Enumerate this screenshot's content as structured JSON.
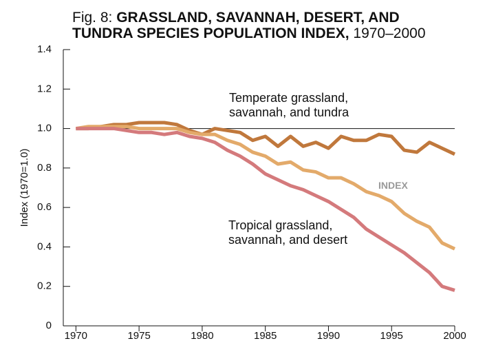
{
  "chart_data": {
    "type": "line",
    "title": {
      "prefix": "Fig. 8:",
      "bold": [
        "GRASSLAND, SAVANNAH, DESERT, AND",
        "TUNDRA SPECIES POPULATION INDEX,"
      ],
      "suffix": "1970–2000"
    },
    "ylabel": "Index (1970=1.0)",
    "x": [
      1970,
      1971,
      1972,
      1973,
      1974,
      1975,
      1976,
      1977,
      1978,
      1979,
      1980,
      1981,
      1982,
      1983,
      1984,
      1985,
      1986,
      1987,
      1988,
      1989,
      1990,
      1991,
      1992,
      1993,
      1994,
      1995,
      1996,
      1997,
      1998,
      1999,
      2000
    ],
    "series": [
      {
        "name": "Temperate grassland, savannah, and tundra",
        "color": "#c0783c",
        "values": [
          1.0,
          1.0,
          1.01,
          1.02,
          1.02,
          1.03,
          1.03,
          1.03,
          1.02,
          0.99,
          0.97,
          1.0,
          0.99,
          0.98,
          0.94,
          0.96,
          0.91,
          0.96,
          0.91,
          0.93,
          0.9,
          0.96,
          0.94,
          0.94,
          0.97,
          0.96,
          0.89,
          0.88,
          0.93,
          0.9,
          0.87
        ]
      },
      {
        "name": "INDEX",
        "color": "#e3aa6a",
        "values": [
          1.0,
          1.01,
          1.01,
          1.01,
          1.01,
          1.0,
          1.0,
          1.0,
          1.0,
          0.98,
          0.97,
          0.97,
          0.94,
          0.92,
          0.88,
          0.86,
          0.82,
          0.83,
          0.79,
          0.78,
          0.75,
          0.75,
          0.72,
          0.68,
          0.66,
          0.63,
          0.57,
          0.53,
          0.5,
          0.42,
          0.39
        ]
      },
      {
        "name": "Tropical grassland, savannah, and desert",
        "color": "#d47a7c",
        "values": [
          1.0,
          1.0,
          1.0,
          1.0,
          0.99,
          0.98,
          0.98,
          0.97,
          0.98,
          0.96,
          0.95,
          0.93,
          0.89,
          0.86,
          0.82,
          0.77,
          0.74,
          0.71,
          0.69,
          0.66,
          0.63,
          0.59,
          0.55,
          0.49,
          0.45,
          0.41,
          0.37,
          0.32,
          0.27,
          0.2,
          0.18
        ]
      }
    ],
    "reference_line": 1,
    "xlim": [
      1969,
      2000
    ],
    "xticks": [
      1970,
      1975,
      1980,
      1985,
      1990,
      1995,
      2000
    ],
    "ylim": [
      0,
      1.4
    ],
    "yticks": [
      0,
      0.2,
      0.4,
      0.6,
      0.8,
      {
        "value": 1,
        "label": "1.0"
      },
      1.2,
      1.4
    ]
  }
}
